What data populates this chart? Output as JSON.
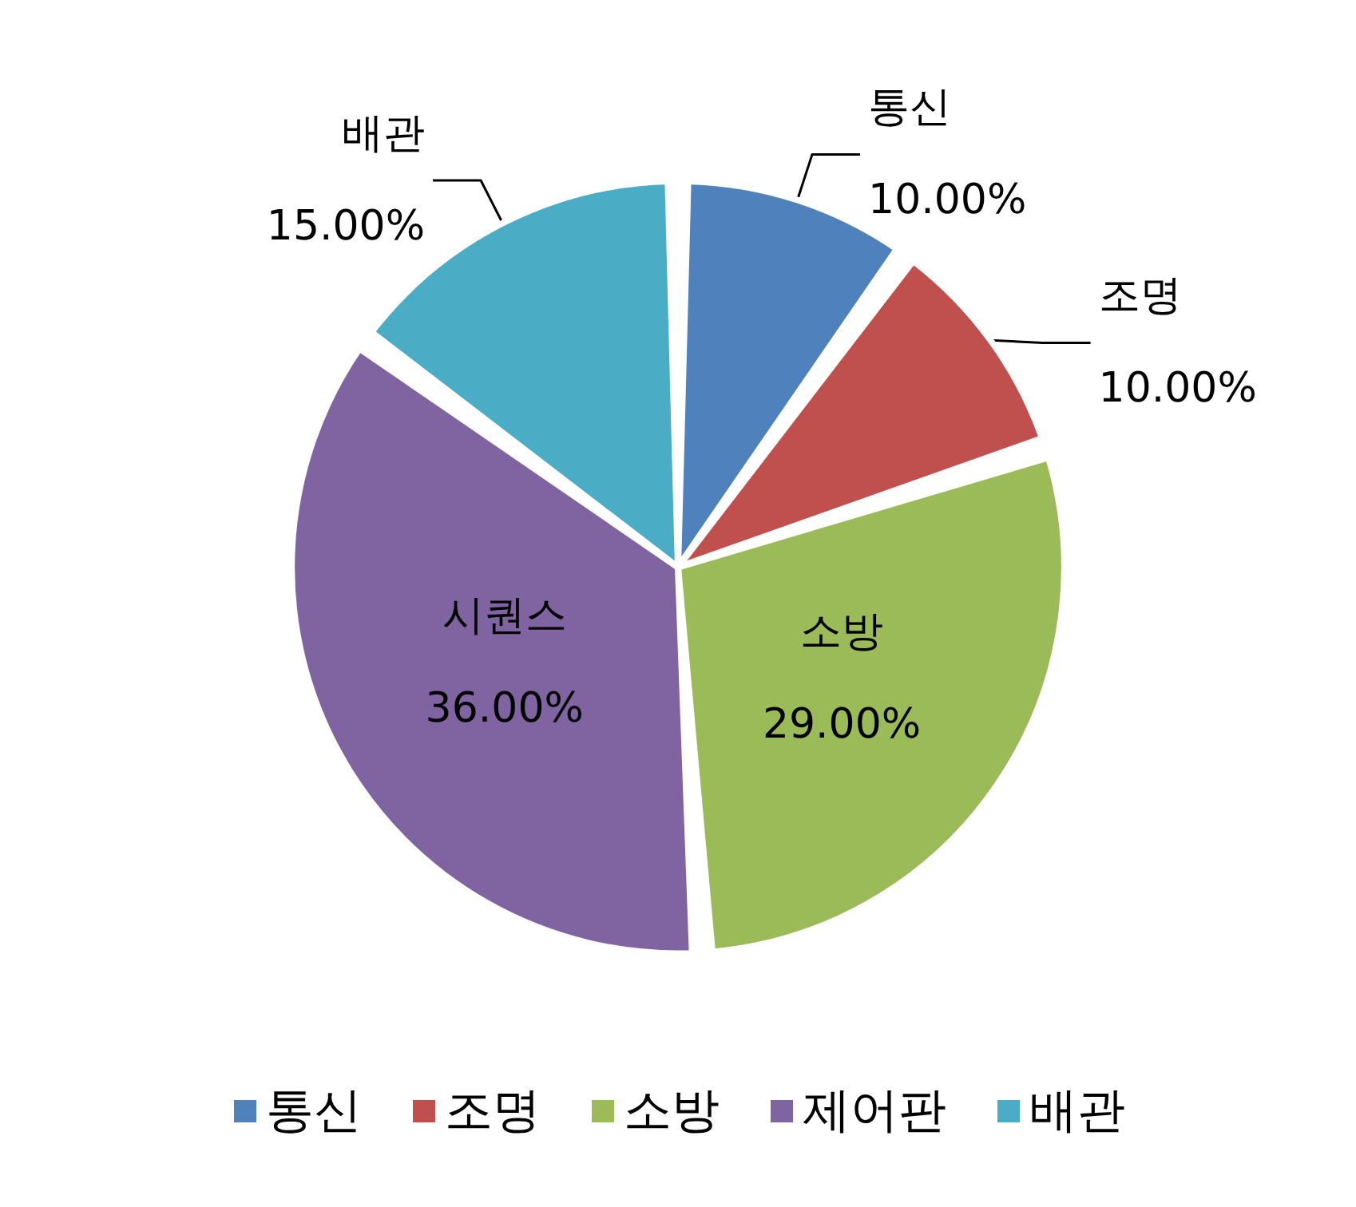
{
  "chart_data": {
    "type": "pie",
    "categories": [
      "통신",
      "조명",
      "소방",
      "제어판",
      "배관"
    ],
    "values": [
      10,
      10,
      29,
      36,
      15
    ],
    "colors": [
      "#4f81bd",
      "#c0504d",
      "#9bbb59",
      "#8064a2",
      "#4bacc6"
    ],
    "value_labels": [
      "통신\n10.00%",
      "조명\n10.00%",
      "소방\n29.00%",
      "시퀀스\n36.00%",
      "배관\n15.00%"
    ],
    "legend": "bottom"
  }
}
